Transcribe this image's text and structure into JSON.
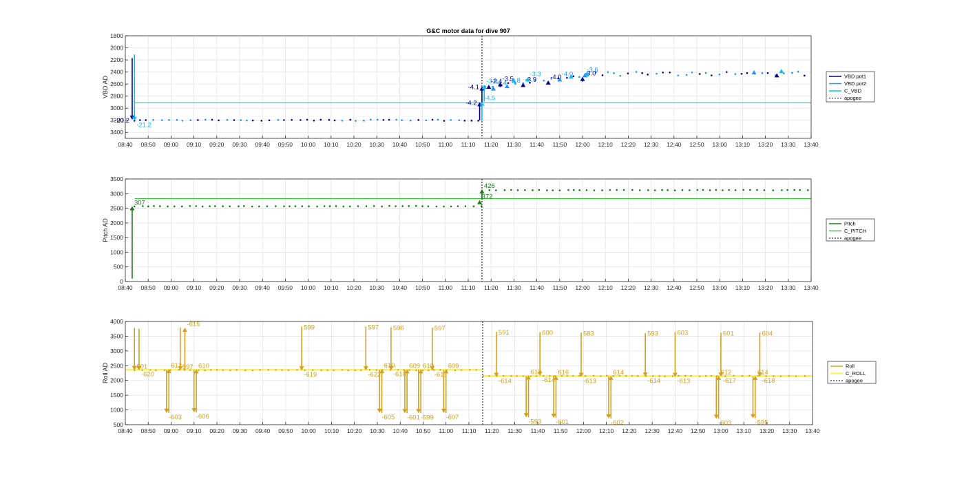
{
  "chart_data": [
    {
      "type": "line",
      "title": "G&C motor data for dive 907",
      "ylabel": "VBD AD",
      "y_reversed": true,
      "ylim": [
        1800,
        3500
      ],
      "yticks": [
        "1800",
        "2000",
        "2200",
        "2400",
        "2600",
        "2800",
        "3000",
        "3200",
        "3400"
      ],
      "xlim": [
        "08:40",
        "13:40"
      ],
      "xticks": [
        "08:40",
        "08:50",
        "09:00",
        "09:10",
        "09:20",
        "09:30",
        "09:40",
        "09:50",
        "10:00",
        "10:10",
        "10:20",
        "10:30",
        "10:40",
        "10:50",
        "11:00",
        "11:10",
        "11:20",
        "11:30",
        "11:40",
        "11:50",
        "12:00",
        "12:10",
        "12:20",
        "12:30",
        "12:40",
        "12:50",
        "13:00",
        "13:10",
        "13:20",
        "13:30",
        "13:40"
      ],
      "grid": true,
      "legend_position": "outside-right",
      "apogee_x": "11:16",
      "series": [
        {
          "name": "VBD pot1",
          "color": "#00008b"
        },
        {
          "name": "VBD pot2",
          "color": "#1e90ff"
        },
        {
          "name": "C_VBD",
          "color": "#00ced1",
          "y": 2910
        },
        {
          "name": "apogee",
          "color": "#000000",
          "style": "dotted"
        }
      ],
      "moves": [
        {
          "x": "08:43",
          "from": 2170,
          "to": 3190,
          "label": "-20.2",
          "color": "#00008b"
        },
        {
          "x": "08:44",
          "from": 2110,
          "to": 3210,
          "label": "-21.2",
          "color": "#00bfff"
        },
        {
          "x": "11:15",
          "from": 3200,
          "to": 2900,
          "label": "-4.2",
          "color": "#00008b"
        },
        {
          "x": "11:16",
          "from": 3210,
          "to": 2890,
          "label": "-4.5",
          "color": "#00bfff"
        },
        {
          "x": "11:16",
          "from": 2900,
          "to": 2640,
          "label": "-4.1",
          "color": "#00008b"
        },
        {
          "x": "11:17",
          "from": 2890,
          "to": 2610,
          "label": "-3.9",
          "color": "#00bfff"
        },
        {
          "x": "11:19",
          "from": 2680,
          "to": 2610,
          "label": "-2.4",
          "color": "#00008b"
        },
        {
          "x": "11:21",
          "from": 2700,
          "to": 2640,
          "label": "-4.4",
          "color": "#1e90ff"
        },
        {
          "x": "11:24",
          "from": 2650,
          "to": 2570,
          "label": "-3.5",
          "color": "#00008b"
        },
        {
          "x": "11:27",
          "from": 2660,
          "to": 2600,
          "label": "-3.8",
          "color": "#1e90ff"
        },
        {
          "x": "11:30",
          "from": 2580,
          "to": 2510,
          "label": "",
          "color": "#00bfff"
        },
        {
          "x": "11:34",
          "from": 2640,
          "to": 2580,
          "label": "-3.9",
          "color": "#00008b"
        },
        {
          "x": "11:36",
          "from": 2560,
          "to": 2490,
          "label": "-3.3",
          "color": "#00bfff"
        },
        {
          "x": "11:45",
          "from": 2590,
          "to": 2540,
          "label": "-4.0",
          "color": "#00008b"
        },
        {
          "x": "11:50",
          "from": 2540,
          "to": 2490,
          "label": "-4.0",
          "color": "#1e90ff"
        },
        {
          "x": "11:55",
          "from": 2500,
          "to": 2440,
          "label": "",
          "color": "#00bfff"
        },
        {
          "x": "12:00",
          "from": 2560,
          "to": 2480,
          "label": "-3.0",
          "color": "#00008b"
        },
        {
          "x": "12:01",
          "from": 2480,
          "to": 2420,
          "label": "-3.6",
          "color": "#1e90ff"
        },
        {
          "x": "12:02",
          "from": 2450,
          "to": 2390,
          "label": "",
          "color": "#00bfff"
        },
        {
          "x": "13:15",
          "from": 2430,
          "to": 2370,
          "label": "",
          "color": "#1e90ff"
        },
        {
          "x": "13:25",
          "from": 2460,
          "to": 2420,
          "label": "",
          "color": "#00008b"
        },
        {
          "x": "13:27",
          "from": 2400,
          "to": 2350,
          "label": "",
          "color": "#00bfff"
        }
      ]
    },
    {
      "type": "line",
      "ylabel": "Pitch AD",
      "ylim": [
        0,
        3500
      ],
      "yticks": [
        "0",
        "500",
        "1000",
        "1500",
        "2000",
        "2500",
        "3000",
        "3500"
      ],
      "xlim": [
        "08:40",
        "13:40"
      ],
      "xticks": [
        "08:40",
        "08:50",
        "09:00",
        "09:10",
        "09:20",
        "09:30",
        "09:40",
        "09:50",
        "10:00",
        "10:10",
        "10:20",
        "10:30",
        "10:40",
        "10:50",
        "11:00",
        "11:10",
        "11:20",
        "11:30",
        "11:40",
        "11:50",
        "12:00",
        "12:10",
        "12:20",
        "12:30",
        "12:40",
        "12:50",
        "13:00",
        "13:10",
        "13:20",
        "13:30",
        "13:40"
      ],
      "grid": true,
      "legend_position": "outside-right",
      "apogee_x": "11:16",
      "series": [
        {
          "name": "Pitch",
          "color": "#1a7a1a"
        },
        {
          "name": "C_PITCH",
          "color": "#32cd32",
          "y": 2830
        },
        {
          "name": "apogee",
          "color": "#000000",
          "style": "dotted"
        }
      ],
      "moves": [
        {
          "x": "08:43",
          "from": 100,
          "to": 2570,
          "label": "307",
          "color": "#1a7a1a"
        },
        {
          "x": "11:15",
          "from": 2640,
          "to": 2780,
          "label": "372",
          "color": "#1a7a1a"
        },
        {
          "x": "11:16",
          "from": 2790,
          "to": 3150,
          "label": "426",
          "color": "#1a7a1a"
        }
      ]
    },
    {
      "type": "line",
      "ylabel": "Roll AD",
      "ylim": [
        500,
        4000
      ],
      "yticks": [
        "500",
        "1000",
        "1500",
        "2000",
        "2500",
        "3000",
        "3500",
        "4000"
      ],
      "xlim": [
        "08:40",
        "13:40"
      ],
      "xticks": [
        "08:40",
        "08:50",
        "09:00",
        "09:10",
        "09:20",
        "09:30",
        "09:40",
        "09:50",
        "10:00",
        "10:10",
        "10:20",
        "10:30",
        "10:40",
        "10:50",
        "11:00",
        "11:10",
        "11:20",
        "11:30",
        "11:40",
        "11:50",
        "12:00",
        "12:10",
        "12:20",
        "12:30",
        "12:40",
        "12:50",
        "13:00",
        "13:10",
        "13:20",
        "13:30",
        "13:40"
      ],
      "grid": true,
      "legend_position": "outside-right",
      "apogee_x": "11:16",
      "series": [
        {
          "name": "Roll",
          "color": "#d4a017"
        },
        {
          "name": "C_ROLL",
          "color": "#ffeb3b",
          "y": 2360,
          "y2": 2150
        },
        {
          "name": "apogee",
          "color": "#000000",
          "style": "dotted"
        }
      ],
      "moves": [
        {
          "x": "08:44",
          "from": 3780,
          "to": 2350,
          "label": "601",
          "color": "#d4a017",
          "lpos": "top"
        },
        {
          "x": "08:46",
          "from": 3750,
          "to": 2350,
          "label": "-620",
          "color": "#d4a017"
        },
        {
          "x": "08:58",
          "from": 2350,
          "to": 900,
          "label": "-603",
          "color": "#d4a017"
        },
        {
          "x": "08:59",
          "from": 900,
          "to": 2390,
          "label": "612",
          "color": "#d4a017",
          "lpos": "top"
        },
        {
          "x": "09:04",
          "from": 3800,
          "to": 2340,
          "label": "597",
          "color": "#d4a017",
          "lpos": "top"
        },
        {
          "x": "09:06",
          "from": 2340,
          "to": 3790,
          "label": "-615",
          "color": "#d4a017"
        },
        {
          "x": "09:10",
          "from": 2350,
          "to": 920,
          "label": "-606",
          "color": "#d4a017"
        },
        {
          "x": "09:11",
          "from": 920,
          "to": 2380,
          "label": "610",
          "color": "#d4a017",
          "lpos": "top"
        },
        {
          "x": "09:57",
          "from": 3830,
          "to": 2340,
          "label": "-619",
          "color": "#d4a017",
          "toplabel": "599"
        },
        {
          "x": "10:25",
          "from": 3830,
          "to": 2340,
          "label": "-622",
          "color": "#d4a017",
          "toplabel": "597"
        },
        {
          "x": "10:31",
          "from": 2360,
          "to": 900,
          "label": "-605",
          "color": "#d4a017"
        },
        {
          "x": "10:32",
          "from": 900,
          "to": 2390,
          "label": "610",
          "color": "#d4a017",
          "lpos": "top"
        },
        {
          "x": "10:36",
          "from": 3800,
          "to": 2350,
          "label": "-618",
          "color": "#d4a017",
          "toplabel": "596"
        },
        {
          "x": "10:42",
          "from": 2370,
          "to": 890,
          "label": "-601",
          "color": "#d4a017"
        },
        {
          "x": "10:43",
          "from": 890,
          "to": 2380,
          "label": "609",
          "color": "#d4a017",
          "lpos": "top"
        },
        {
          "x": "10:48",
          "from": 2370,
          "to": 890,
          "label": "-599",
          "color": "#d4a017"
        },
        {
          "x": "10:49",
          "from": 890,
          "to": 2380,
          "label": "610",
          "color": "#d4a017",
          "lpos": "top"
        },
        {
          "x": "10:54",
          "from": 3790,
          "to": 2340,
          "label": "-617",
          "color": "#d4a017",
          "toplabel": "597"
        },
        {
          "x": "10:59",
          "from": 2350,
          "to": 900,
          "label": "-607",
          "color": "#d4a017"
        },
        {
          "x": "11:00",
          "from": 900,
          "to": 2380,
          "label": "609",
          "color": "#d4a017",
          "lpos": "top"
        },
        {
          "x": "11:22",
          "from": 3650,
          "to": 2120,
          "label": "-614",
          "color": "#d4a017",
          "toplabel": "591"
        },
        {
          "x": "11:35",
          "from": 2140,
          "to": 750,
          "label": "-593",
          "color": "#d4a017"
        },
        {
          "x": "11:36",
          "from": 750,
          "to": 2170,
          "label": "613",
          "color": "#d4a017",
          "lpos": "top"
        },
        {
          "x": "11:41",
          "from": 3640,
          "to": 2160,
          "label": "-614",
          "color": "#d4a017",
          "toplabel": "600"
        },
        {
          "x": "11:47",
          "from": 2160,
          "to": 730,
          "label": "-601",
          "color": "#d4a017"
        },
        {
          "x": "11:48",
          "from": 730,
          "to": 2160,
          "label": "616",
          "color": "#d4a017",
          "lpos": "top"
        },
        {
          "x": "11:59",
          "from": 3620,
          "to": 2120,
          "label": "-613",
          "color": "#d4a017",
          "toplabel": "583"
        },
        {
          "x": "12:11",
          "from": 2140,
          "to": 710,
          "label": "-602",
          "color": "#d4a017"
        },
        {
          "x": "12:12",
          "from": 710,
          "to": 2160,
          "label": "614",
          "color": "#d4a017",
          "lpos": "top"
        },
        {
          "x": "12:27",
          "from": 3610,
          "to": 2130,
          "label": "-614",
          "color": "#d4a017",
          "toplabel": "593"
        },
        {
          "x": "12:40",
          "from": 3640,
          "to": 2120,
          "label": "-613",
          "color": "#d4a017",
          "toplabel": "603"
        },
        {
          "x": "12:58",
          "from": 2140,
          "to": 700,
          "label": "-603",
          "color": "#d4a017"
        },
        {
          "x": "12:59",
          "from": 700,
          "to": 2160,
          "label": "612",
          "color": "#d4a017",
          "lpos": "top"
        },
        {
          "x": "13:00",
          "from": 3620,
          "to": 2130,
          "label": "-617",
          "color": "#d4a017",
          "toplabel": "601"
        },
        {
          "x": "13:14",
          "from": 2140,
          "to": 720,
          "label": "-595",
          "color": "#d4a017"
        },
        {
          "x": "13:15",
          "from": 720,
          "to": 2160,
          "label": "614",
          "color": "#d4a017",
          "lpos": "top"
        },
        {
          "x": "13:17",
          "from": 3620,
          "to": 2130,
          "label": "-618",
          "color": "#d4a017",
          "toplabel": "604"
        }
      ]
    }
  ]
}
